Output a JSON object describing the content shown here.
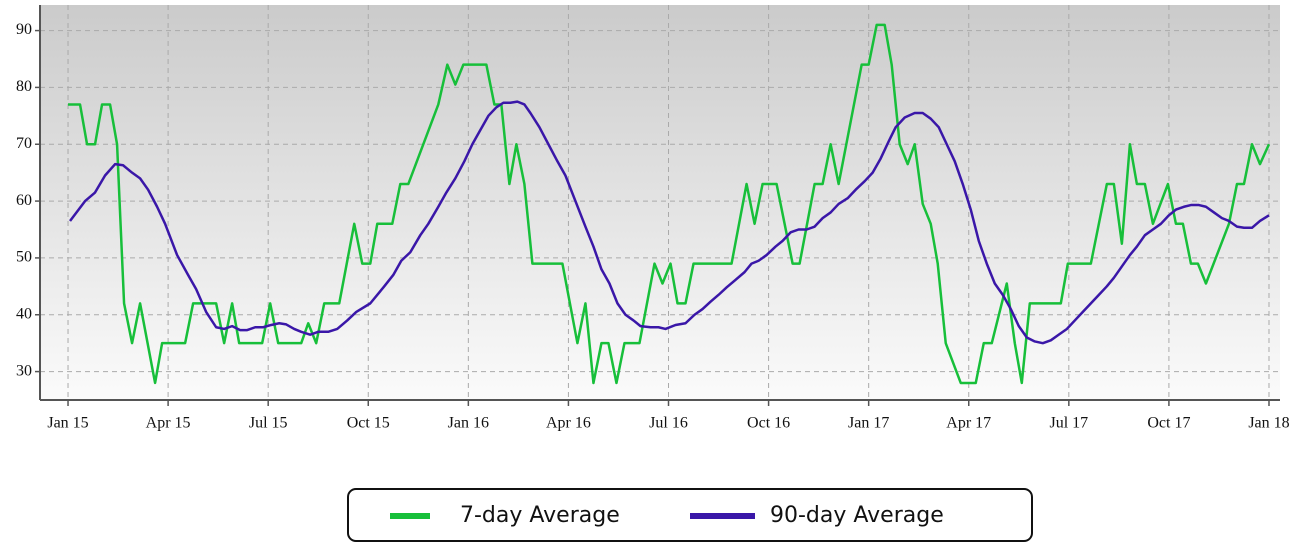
{
  "chart_data": {
    "type": "line",
    "xlim": [
      -0.84,
      36.33
    ],
    "ylim": [
      25,
      94.5
    ],
    "xticks": [
      {
        "value": 0,
        "label": "Jan 15"
      },
      {
        "value": 3,
        "label": "Apr 15"
      },
      {
        "value": 6,
        "label": "Jul 15"
      },
      {
        "value": 9,
        "label": "Oct 15"
      },
      {
        "value": 12,
        "label": "Jan 16"
      },
      {
        "value": 15,
        "label": "Apr 16"
      },
      {
        "value": 18,
        "label": "Jul 16"
      },
      {
        "value": 21,
        "label": "Oct 16"
      },
      {
        "value": 24,
        "label": "Jan 17"
      },
      {
        "value": 27,
        "label": "Apr 17"
      },
      {
        "value": 30,
        "label": "Jul 17"
      },
      {
        "value": 33,
        "label": "Oct 17"
      },
      {
        "value": 36,
        "label": "Jan 18"
      }
    ],
    "yticks": [
      30,
      40,
      50,
      60,
      70,
      80,
      90
    ],
    "grid": true,
    "legend_position": "bottom",
    "series": [
      {
        "name": "7-day Average",
        "color": "#17bf3a",
        "x": [
          0,
          0.36,
          0.57,
          0.81,
          1.02,
          1.26,
          1.47,
          1.68,
          1.92,
          2.16,
          2.61,
          2.82,
          3.06,
          3.51,
          3.75,
          3.96,
          4.44,
          4.68,
          4.92,
          5.13,
          5.37,
          5.82,
          6.06,
          6.3,
          6.75,
          6.99,
          7.2,
          7.44,
          7.68,
          8.13,
          8.58,
          8.82,
          9.06,
          9.27,
          9.72,
          9.96,
          10.2,
          11.1,
          11.37,
          11.61,
          11.85,
          12.54,
          12.78,
          12.99,
          13.23,
          13.44,
          13.68,
          13.92,
          14.82,
          15.27,
          15.51,
          15.75,
          15.99,
          16.2,
          16.44,
          16.68,
          17.13,
          17.58,
          17.82,
          18.06,
          18.27,
          18.51,
          18.75,
          19.89,
          20.34,
          20.58,
          20.82,
          21.24,
          21.72,
          21.93,
          22.38,
          22.62,
          22.86,
          23.1,
          23.79,
          24.0,
          24.24,
          24.48,
          24.69,
          24.93,
          25.17,
          25.38,
          25.62,
          25.86,
          26.07,
          26.31,
          26.76,
          27.21,
          27.45,
          27.69,
          28.14,
          28.38,
          28.59,
          28.83,
          29.76,
          29.97,
          30.66,
          31.14,
          31.35,
          31.59,
          31.83,
          32.04,
          32.28,
          32.52,
          32.97,
          33.21,
          33.42,
          33.66,
          33.87,
          34.11,
          34.8,
          35.04,
          35.25,
          35.49,
          35.73,
          36
        ],
        "values": [
          77,
          77,
          70,
          70,
          77,
          77,
          70,
          42,
          35,
          42,
          28,
          35,
          35,
          35,
          42,
          42,
          42,
          35,
          42,
          35,
          35,
          35,
          42,
          35,
          35,
          35,
          38.5,
          35,
          42,
          42,
          56,
          49,
          49,
          56,
          56,
          63,
          63,
          77,
          84,
          80.5,
          84,
          84,
          77,
          77,
          63,
          70,
          63,
          49,
          49,
          35,
          42,
          28,
          35,
          35,
          28,
          35,
          35,
          49,
          45.5,
          49,
          42,
          42,
          49,
          49,
          63,
          56,
          63,
          63,
          49,
          49,
          63,
          63,
          70,
          63,
          84,
          84,
          91,
          91,
          84,
          70,
          66.5,
          70,
          59.5,
          56,
          49,
          35,
          28,
          28,
          35,
          35,
          45.5,
          35,
          28,
          42,
          42,
          49,
          49,
          63,
          63,
          52.5,
          70,
          63,
          63,
          56,
          63,
          56,
          56,
          49,
          49,
          45.5,
          56,
          63,
          63,
          70,
          66.5,
          70
        ]
      },
      {
        "name": "90-day Average",
        "color": "#3a17a8",
        "x": [
          0.06,
          0.51,
          0.81,
          1.11,
          1.41,
          1.65,
          1.92,
          2.16,
          2.4,
          2.67,
          2.91,
          3.27,
          3.6,
          3.84,
          4.14,
          4.44,
          4.68,
          4.92,
          5.16,
          5.37,
          5.61,
          5.85,
          6.09,
          6.33,
          6.54,
          6.78,
          6.99,
          7.26,
          7.5,
          7.8,
          8.07,
          8.37,
          8.64,
          9.06,
          9.48,
          9.75,
          9.99,
          10.26,
          10.56,
          10.8,
          11.1,
          11.34,
          11.61,
          11.88,
          12.12,
          12.36,
          12.6,
          12.84,
          13.05,
          13.26,
          13.47,
          13.68,
          13.86,
          14.13,
          14.4,
          14.67,
          14.91,
          15.21,
          15.51,
          15.75,
          15.99,
          16.23,
          16.47,
          16.71,
          16.95,
          17.16,
          17.46,
          17.7,
          17.91,
          18.21,
          18.51,
          18.78,
          19.02,
          19.26,
          19.5,
          19.74,
          19.98,
          20.28,
          20.49,
          20.7,
          20.94,
          21.21,
          21.42,
          21.66,
          21.9,
          22.14,
          22.38,
          22.62,
          22.86,
          23.1,
          23.37,
          23.61,
          23.88,
          24.12,
          24.36,
          24.6,
          24.81,
          25.08,
          25.38,
          25.62,
          25.86,
          26.1,
          26.34,
          26.58,
          26.82,
          27.06,
          27.3,
          27.54,
          27.78,
          28.02,
          28.26,
          28.5,
          28.74,
          28.98,
          29.22,
          29.46,
          29.7,
          29.94,
          30.18,
          30.42,
          30.66,
          30.9,
          31.14,
          31.35,
          31.59,
          31.83,
          32.04,
          32.28,
          32.52,
          32.76,
          33.0,
          33.21,
          33.45,
          33.66,
          33.9,
          34.11,
          34.35,
          34.59,
          34.8,
          35.04,
          35.25,
          35.49,
          35.73,
          36
        ],
        "values": [
          56.5,
          60,
          61.5,
          64.5,
          66.5,
          66.3,
          65,
          64,
          62,
          59,
          56,
          50.5,
          47,
          44.5,
          40.5,
          37.8,
          37.5,
          38,
          37.3,
          37.3,
          37.8,
          37.8,
          38.2,
          38.5,
          38.3,
          37.5,
          37,
          36.5,
          37,
          37,
          37.5,
          39,
          40.5,
          42,
          45,
          47,
          49.5,
          51,
          54,
          56,
          59,
          61.5,
          64,
          67,
          70,
          72.5,
          75,
          76.5,
          77.3,
          77.3,
          77.5,
          77,
          75.5,
          73,
          70,
          67,
          64.5,
          60,
          55.5,
          52,
          48,
          45.5,
          42,
          40,
          39,
          38,
          37.8,
          37.8,
          37.5,
          38.2,
          38.5,
          40,
          41,
          42.3,
          43.5,
          44.8,
          46,
          47.5,
          49,
          49.5,
          50.5,
          52,
          53,
          54.5,
          55,
          55,
          55.5,
          57,
          58,
          59.5,
          60.5,
          62,
          63.5,
          65,
          67.5,
          70.5,
          73,
          74.7,
          75.5,
          75.5,
          74.5,
          73,
          70,
          67,
          63,
          58.5,
          53,
          49,
          45.5,
          43.5,
          41,
          38,
          36,
          35.3,
          35,
          35.5,
          36.5,
          37.5,
          39,
          40.5,
          42,
          43.5,
          45,
          46.5,
          48.5,
          50.5,
          52,
          54,
          55,
          56,
          57.5,
          58.5,
          59,
          59.3,
          59.3,
          59,
          58,
          57,
          56.5,
          55.5,
          55.3,
          55.3,
          56.5,
          57.5
        ]
      }
    ]
  }
}
